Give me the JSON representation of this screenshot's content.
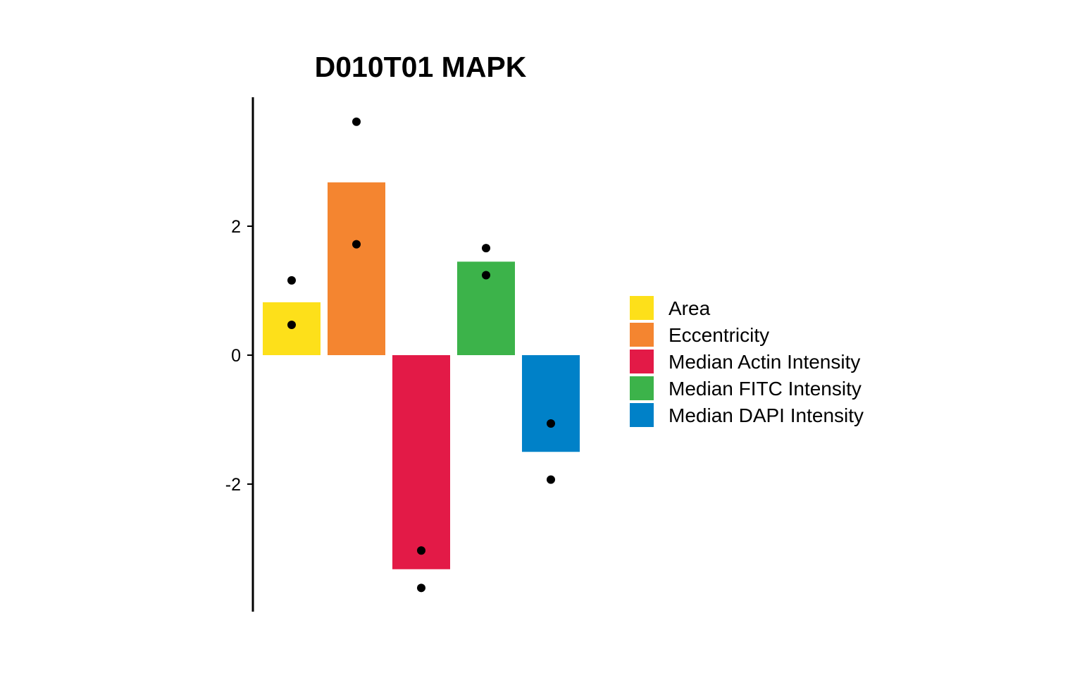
{
  "chart_data": {
    "type": "bar",
    "title": "D010T01 MAPK",
    "xlabel": "",
    "ylabel": "",
    "ylim": [
      -3.95,
      4.0
    ],
    "yticks": [
      -2,
      0,
      2
    ],
    "ytick_labels": [
      "-2",
      "0",
      "2"
    ],
    "grid": false,
    "legend_position": "right",
    "categories": [
      "Area",
      "Eccentricity",
      "Median Actin Intensity",
      "Median FITC Intensity",
      "Median DAPI Intensity"
    ],
    "values": [
      0.82,
      2.68,
      -3.32,
      1.45,
      -1.5
    ],
    "colors": [
      "#FDE01A",
      "#F48530",
      "#E31A47",
      "#3CB34A",
      "#0081C8"
    ],
    "points": [
      [
        1.16,
        0.47
      ],
      [
        3.62,
        1.72
      ],
      [
        -3.03,
        -3.61
      ],
      [
        1.66,
        1.24
      ],
      [
        -1.06,
        -1.93
      ]
    ]
  }
}
